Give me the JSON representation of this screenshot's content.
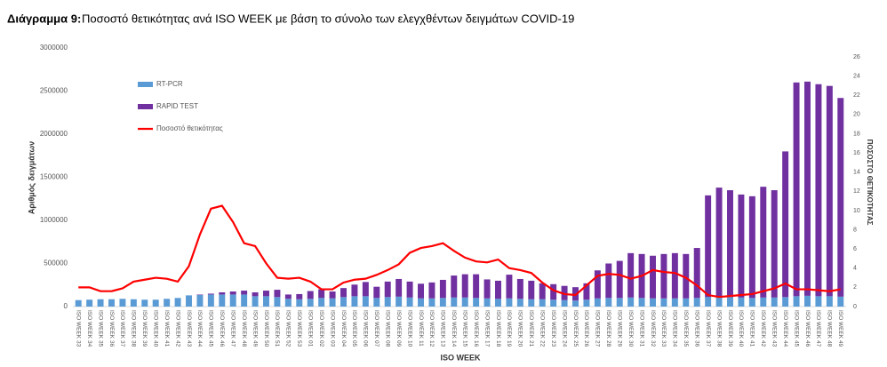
{
  "chart_data": {
    "type": "bar_line",
    "title_prefix": "Διάγραμμα 9:",
    "title": "Ποσοστό θετικότητας ανά ISO WEEK με βάση το σύνολο των ελεγχθέντων δειγμάτων COVID-19",
    "x_label": "ISO WEEK",
    "y_label": "Αριθμός δειγμάτων",
    "y2_label": "ΠΟΣΟΣΤΟ ΘΕΤΙΚΟΤΗΤΑΣ",
    "categories": [
      "ISO WEEK 33",
      "ISO WEEK 34",
      "ISO WEEK 35",
      "ISO WEEK 36",
      "ISO WEEK 37",
      "ISO WEEK 38",
      "ISO WEEK 39",
      "ISO WEEK 40",
      "ISO WEEK 41",
      "ISO WEEK 42",
      "ISO WEEK 43",
      "ISO WEEK 44",
      "ISO WEEK 45",
      "ISO WEEK 46",
      "ISO WEEK 47",
      "ISO WEEK 48",
      "ISO WEEK 49",
      "ISO WEEK 50",
      "ISO WEEK 51",
      "ISO WEEK 52",
      "ISO WEEK 53",
      "ISO WEEK 01",
      "ISO WEEK 02",
      "ISO WEEK 03",
      "ISO WEEK 04",
      "ISO WEEK 05",
      "ISO WEEK 06",
      "ISO WEEK 07",
      "ISO WEEK 08",
      "ISO WEEK 09",
      "ISO WEEK 10",
      "ISO WEEK 11",
      "ISO WEEK 12",
      "ISO WEEK 13",
      "ISO WEEK 14",
      "ISO WEEK 15",
      "ISO WEEK 16",
      "ISO WEEK 17",
      "ISO WEEK 18",
      "ISO WEEK 19",
      "ISO WEEK 20",
      "ISO WEEK 21",
      "ISO WEEK 22",
      "ISO WEEK 23",
      "ISO WEEK 24",
      "ISO WEEK 25",
      "ISO WEEK 26",
      "ISO WEEK 27",
      "ISO WEEK 28",
      "ISO WEEK 29",
      "ISO WEEK 30",
      "ISO WEEK 31",
      "ISO WEEK 32",
      "ISO WEEK 33",
      "ISO WEEK 34",
      "ISO WEEK 35",
      "ISO WEEK 36",
      "ISO WEEK 37",
      "ISO WEEK 38",
      "ISO WEEK 39",
      "ISO WEEK 40",
      "ISO WEEK 41",
      "ISO WEEK 42",
      "ISO WEEK 43",
      "ISO WEEK 44",
      "ISO WEEK 45",
      "ISO WEEK 46",
      "ISO WEEK 47",
      "ISO WEEK 48",
      "ISO WEEK 49"
    ],
    "series": [
      {
        "name": "RT-PCR",
        "color": "#5b9bd5",
        "values": [
          75000,
          80000,
          85000,
          85000,
          90000,
          85000,
          80000,
          80000,
          90000,
          100000,
          130000,
          135000,
          140000,
          140000,
          140000,
          140000,
          120000,
          120000,
          110000,
          90000,
          85000,
          90000,
          100000,
          95000,
          110000,
          120000,
          120000,
          100000,
          110000,
          115000,
          105000,
          95000,
          95000,
          100000,
          105000,
          105000,
          100000,
          95000,
          90000,
          95000,
          90000,
          85000,
          85000,
          80000,
          75000,
          70000,
          80000,
          95000,
          100000,
          100000,
          105000,
          100000,
          95000,
          95000,
          95000,
          95000,
          100000,
          110000,
          110000,
          110000,
          105000,
          100000,
          105000,
          105000,
          110000,
          120000,
          125000,
          120000,
          120000,
          115000
        ]
      },
      {
        "name": "RAPID TEST",
        "color": "#7030a0",
        "values": [
          0,
          0,
          0,
          0,
          0,
          0,
          0,
          0,
          0,
          0,
          0,
          5000,
          10000,
          25000,
          35000,
          45000,
          45000,
          65000,
          85000,
          50000,
          60000,
          90000,
          100000,
          80000,
          105000,
          135000,
          165000,
          130000,
          180000,
          205000,
          185000,
          170000,
          185000,
          210000,
          255000,
          270000,
          275000,
          220000,
          210000,
          275000,
          230000,
          215000,
          185000,
          180000,
          165000,
          155000,
          190000,
          325000,
          400000,
          430000,
          515000,
          510000,
          495000,
          515000,
          525000,
          515000,
          580000,
          1180000,
          1270000,
          1240000,
          1195000,
          1180000,
          1285000,
          1245000,
          1690000,
          2480000,
          2485000,
          2460000,
          2440000,
          2305000
        ]
      },
      {
        "name": "Ποσοστό θετικότητας",
        "color": "#ff0000",
        "axis": "y2",
        "values": [
          2.0,
          2.0,
          1.6,
          1.6,
          1.9,
          2.6,
          2.8,
          3.0,
          2.9,
          2.6,
          4.2,
          7.5,
          10.2,
          10.5,
          8.8,
          6.6,
          6.3,
          4.5,
          3.0,
          2.9,
          3.0,
          2.6,
          1.8,
          1.8,
          2.5,
          2.8,
          2.9,
          3.3,
          3.8,
          4.4,
          5.6,
          6.1,
          6.3,
          6.6,
          5.8,
          5.1,
          4.7,
          4.6,
          4.9,
          4.0,
          3.8,
          3.5,
          2.5,
          1.7,
          1.3,
          1.2,
          2.2,
          3.2,
          3.4,
          3.3,
          2.9,
          3.2,
          3.8,
          3.6,
          3.5,
          3.0,
          2.2,
          1.2,
          1.0,
          1.1,
          1.2,
          1.3,
          1.6,
          1.9,
          2.4,
          1.8,
          1.8,
          1.7,
          1.6,
          1.8
        ]
      }
    ],
    "ylim": [
      0,
      3000000
    ],
    "yticks": [
      0,
      500000,
      1000000,
      1500000,
      2000000,
      2500000,
      3000000
    ],
    "y2lim": [
      0,
      26
    ],
    "y2ticks": [
      0,
      2,
      4,
      6,
      8,
      10,
      12,
      14,
      16,
      18,
      20,
      22,
      24,
      26
    ],
    "legend": "upper left",
    "stacked": true,
    "grid": false
  }
}
